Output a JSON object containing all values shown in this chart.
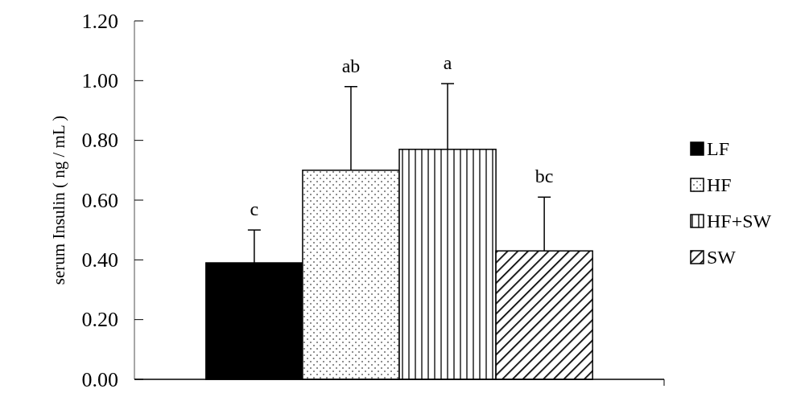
{
  "chart_data": {
    "type": "bar",
    "ylabel": "serum Insulin ( ng / mL )",
    "categories": [
      null
    ],
    "series": [
      {
        "name": "LF",
        "color": "#000000",
        "values": [
          0.39
        ],
        "errors": [
          0.11
        ]
      },
      {
        "name": "HF",
        "color": "#000000",
        "values": [
          0.7
        ],
        "errors": [
          0.28
        ]
      },
      {
        "name": "HF+SW",
        "color": "#000000",
        "values": [
          0.77
        ],
        "errors": [
          0.22
        ]
      },
      {
        "name": "SW",
        "color": "#000000",
        "values": [
          0.43
        ],
        "errors": [
          0.18
        ]
      }
    ],
    "annotations": [
      "c",
      "ab",
      "a",
      "bc"
    ],
    "ylim": [
      0,
      1.2
    ],
    "yticks": [
      {
        "value": 0,
        "label": "0.00"
      },
      {
        "value": 0.2,
        "label": "0.20"
      },
      {
        "value": 0.4,
        "label": "0.40"
      },
      {
        "value": 0.6,
        "label": "0.60"
      },
      {
        "value": 0.8,
        "label": "0.80"
      },
      {
        "value": 1,
        "label": "1.00"
      },
      {
        "value": 1.2,
        "label": "1.20"
      }
    ],
    "grid": false,
    "legend": "right"
  }
}
